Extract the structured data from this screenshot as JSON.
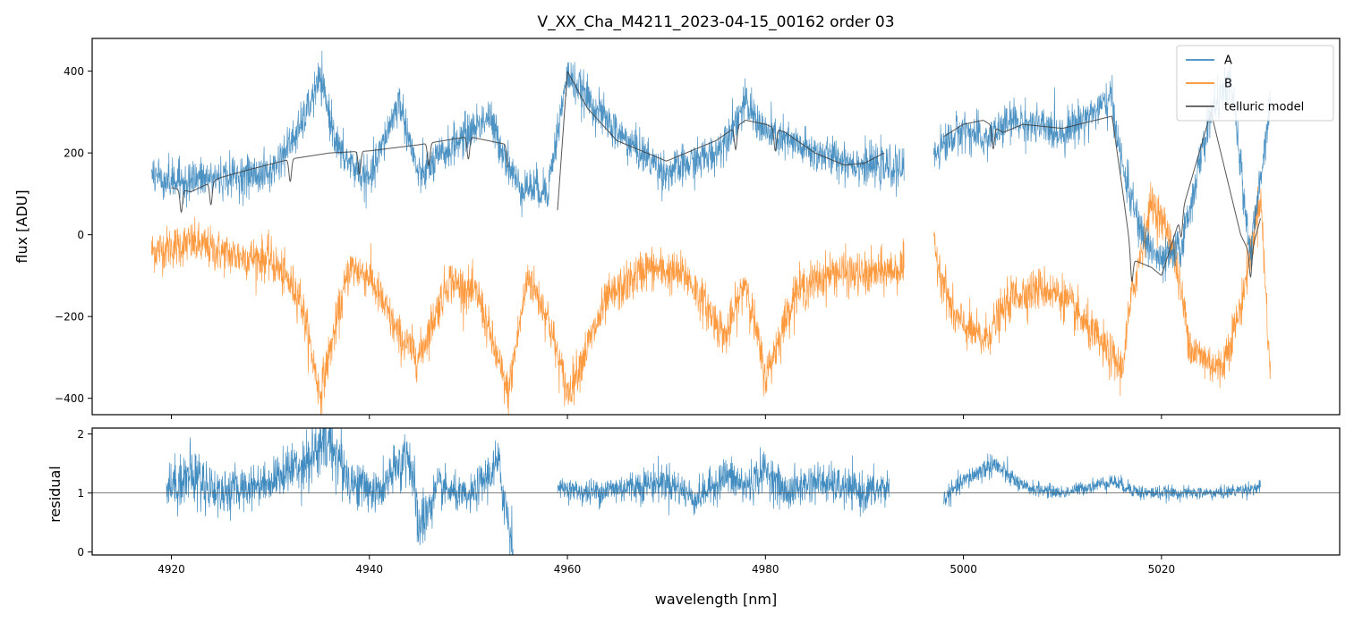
{
  "chart_data": [
    {
      "type": "line",
      "panel": "top",
      "title": "V_XX_Cha_M4211_2023-04-15_00162  order 03",
      "ylabel": "flux [ADU]",
      "xlim": [
        4912,
        5038
      ],
      "ylim": [
        -440,
        480
      ],
      "x_ticks": [
        4920,
        4940,
        4960,
        4980,
        5000,
        5020
      ],
      "y_ticks": [
        400,
        200,
        0,
        -200,
        -400
      ],
      "y_tick_labels": [
        "400",
        "200",
        "0",
        "−200",
        "−400"
      ],
      "legend": {
        "placement": "top-right",
        "entries": [
          {
            "label": "A",
            "color": "#1f77b4"
          },
          {
            "label": "B",
            "color": "#ff7f0e"
          },
          {
            "label": "telluric model",
            "color": "#3a3a3a"
          }
        ]
      },
      "series": [
        {
          "name": "A",
          "color": "#1f77b4",
          "noise": 45,
          "segments": [
            {
              "x": [
                4918,
                4920,
                4925,
                4930,
                4933,
                4935,
                4937,
                4940,
                4943,
                4945,
                4948,
                4952,
                4955,
                4958,
                4960,
                4965,
                4970,
                4975,
                4978,
                4980,
                4985,
                4990,
                4994
              ],
              "y": [
                150,
                130,
                140,
                150,
                260,
                380,
                200,
                130,
                330,
                140,
                210,
                290,
                120,
                110,
                390,
                250,
                150,
                200,
                320,
                250,
                200,
                170,
                160
              ]
            },
            {
              "x": [
                4997,
                5000,
                5002,
                5005,
                5010,
                5015,
                5016,
                5018,
                5020,
                5022,
                5025,
                5027,
                5029,
                5031
              ],
              "y": [
                200,
                260,
                230,
                280,
                250,
                330,
                170,
                0,
                -70,
                -30,
                300,
                380,
                -50,
                330
              ]
            }
          ]
        },
        {
          "name": "B",
          "color": "#ff7f0e",
          "noise": 48,
          "segments": [
            {
              "x": [
                4918,
                4922,
                4926,
                4930,
                4933,
                4935,
                4938,
                4940,
                4943,
                4945,
                4948,
                4951,
                4954,
                4956,
                4958,
                4960,
                4964,
                4968,
                4972,
                4976,
                4978,
                4980,
                4983,
                4987,
                4990,
                4994
              ],
              "y": [
                -40,
                -20,
                -50,
                -60,
                -150,
                -390,
                -80,
                -100,
                -250,
                -300,
                -110,
                -150,
                -390,
                -100,
                -200,
                -390,
                -160,
                -80,
                -100,
                -250,
                -110,
                -350,
                -140,
                -90,
                -100,
                -80
              ]
            },
            {
              "x": [
                4997,
                4999,
                5002,
                5005,
                5008,
                5010,
                5013,
                5016,
                5017,
                5019,
                5021,
                5023,
                5026,
                5028,
                5030,
                5031
              ],
              "y": [
                -30,
                -200,
                -260,
                -150,
                -130,
                -150,
                -240,
                -330,
                -150,
                80,
                -10,
                -280,
                -330,
                -180,
                100,
                -350
              ]
            }
          ]
        },
        {
          "name": "telluric model",
          "color": "#3a3a3a",
          "segments": [
            {
              "x": [
                4920,
                4922,
                4925,
                4928,
                4932,
                4936,
                4940,
                4945,
                4950,
                4954
              ],
              "y": [
                115,
                105,
                140,
                160,
                185,
                200,
                205,
                220,
                240,
                220
              ]
            },
            {
              "x": [
                4959,
                4960,
                4962,
                4965,
                4970,
                4975,
                4978,
                4980,
                4982,
                4985,
                4988,
                4990,
                4992
              ],
              "y": [
                60,
                400,
                310,
                230,
                180,
                230,
                280,
                270,
                250,
                200,
                170,
                175,
                200
              ]
            },
            {
              "x": [
                4998,
                5000,
                5002,
                5004,
                5006,
                5010,
                5015,
                5016,
                5017,
                5019,
                5020,
                5022,
                5025,
                5028,
                5029,
                5030
              ],
              "y": [
                240,
                270,
                280,
                250,
                270,
                260,
                290,
                120,
                -60,
                -80,
                -100,
                50,
                300,
                0,
                -50,
                40
              ]
            }
          ],
          "dips": [
            4921,
            4924,
            4932,
            4939,
            4946,
            4950,
            4954,
            4977,
            4981,
            5003,
            5017,
            5022,
            5029
          ]
        }
      ]
    },
    {
      "type": "line",
      "panel": "bottom",
      "xlabel": "wavelength [nm]",
      "ylabel": "residual",
      "xlim": [
        4912,
        5038
      ],
      "ylim": [
        -0.05,
        2.1
      ],
      "x_ticks": [
        4920,
        4940,
        4960,
        4980,
        5000,
        5020
      ],
      "x_tick_labels": [
        "4920",
        "4940",
        "4960",
        "4980",
        "5000",
        "5020"
      ],
      "y_ticks": [
        0,
        1,
        2
      ],
      "y_tick_labels": [
        "0",
        "1",
        "2"
      ],
      "reference_line": 1,
      "series": [
        {
          "name": "residual",
          "color": "#1f77b4",
          "segments": [
            {
              "x": [
                4919.5,
                4922,
                4925,
                4930,
                4934,
                4936,
                4938,
                4941,
                4944,
                4945,
                4947,
                4950,
                4953,
                4954.5
              ],
              "y": [
                1.1,
                1.3,
                1.0,
                1.2,
                1.6,
                1.9,
                1.2,
                1.0,
                1.7,
                0.4,
                1.1,
                0.9,
                1.5,
                0.1
              ],
              "noise": [
                0.35,
                0.5,
                0.35,
                0.3,
                0.5,
                0.6,
                0.4,
                0.3,
                0.5,
                0.5,
                0.3,
                0.25,
                0.4,
                0.5
              ]
            },
            {
              "x": [
                4959,
                4962,
                4966,
                4970,
                4973,
                4976,
                4978,
                4980,
                4982,
                4985,
                4990,
                4992.5
              ],
              "y": [
                1.1,
                1.0,
                1.1,
                1.2,
                0.9,
                1.3,
                1.1,
                1.4,
                1.0,
                1.2,
                1.0,
                1.1
              ],
              "noise": [
                0.12,
                0.2,
                0.25,
                0.3,
                0.25,
                0.3,
                0.35,
                0.3,
                0.3,
                0.3,
                0.3,
                0.3
              ]
            },
            {
              "x": [
                4998,
                5000,
                5003,
                5006,
                5010,
                5015,
                5018,
                5022,
                5026,
                5030
              ],
              "y": [
                0.9,
                1.2,
                1.5,
                1.1,
                1.0,
                1.2,
                1.0,
                1.0,
                1.0,
                1.1
              ],
              "noise": [
                0.15,
                0.15,
                0.2,
                0.12,
                0.1,
                0.12,
                0.12,
                0.1,
                0.1,
                0.12
              ]
            }
          ]
        }
      ]
    }
  ]
}
